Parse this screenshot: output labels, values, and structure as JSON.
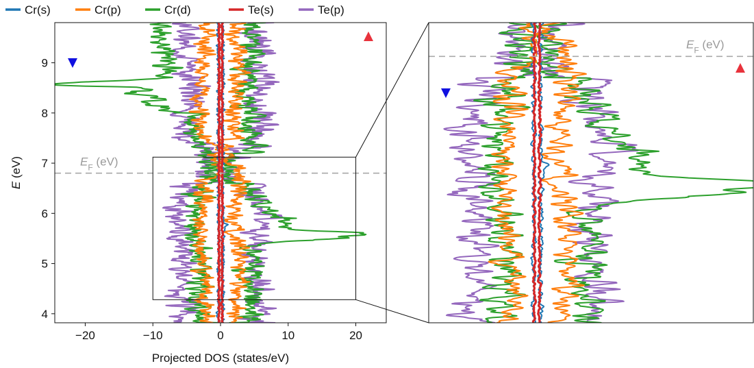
{
  "chart_data": [
    {
      "id": "main",
      "type": "line",
      "orientation": "horizontal-dos",
      "xlabel": "Projected DOS (states/eV)",
      "ylabel": "E (eV)",
      "ylabel_parts": {
        "italic": "E",
        "rest": " (eV)"
      },
      "xlim": [
        -24.5,
        24.5
      ],
      "ylim": [
        3.82,
        9.8
      ],
      "xticks": [
        -20,
        -10,
        0,
        10,
        20
      ],
      "xtick_labels": [
        "−20",
        "−10",
        "0",
        "10",
        "20"
      ],
      "yticks": [
        4,
        5,
        6,
        7,
        8,
        9
      ],
      "ytick_labels": [
        "4",
        "5",
        "6",
        "7",
        "8",
        "9"
      ],
      "fermi_level": 6.8,
      "fermi_label": {
        "italic": "E",
        "sub": "F",
        "rest": " (eV)"
      },
      "spin_down_arrow_color": "#1010e0",
      "spin_up_arrow_color": "#e8323c",
      "inset_box": {
        "x": [
          -10,
          20
        ],
        "y": [
          4.28,
          7.12
        ]
      },
      "grid": false,
      "legend_position": "top",
      "series_abs_max": {
        "Cr(s)": 0.5,
        "Cr(p)": 3.0,
        "Cr(d)": 17.5,
        "Te(s)": 0.3,
        "Te(p)": 6.0
      }
    },
    {
      "id": "zoom",
      "type": "line",
      "orientation": "horizontal-dos",
      "xlim": [
        -10,
        20
      ],
      "ylim": [
        4.28,
        7.12
      ],
      "fermi_level": 6.8,
      "fermi_label": {
        "italic": "E",
        "sub": "F",
        "rest": " (eV)"
      },
      "axis_ticks": false,
      "grid": false
    }
  ],
  "legend": [
    {
      "name": "Cr(s)",
      "color": "#1f77b4"
    },
    {
      "name": "Cr(p)",
      "color": "#ff7f0e"
    },
    {
      "name": "Cr(d)",
      "color": "#2ca02c"
    },
    {
      "name": "Te(s)",
      "color": "#d62728"
    },
    {
      "name": "Te(p)",
      "color": "#9467bd"
    }
  ]
}
